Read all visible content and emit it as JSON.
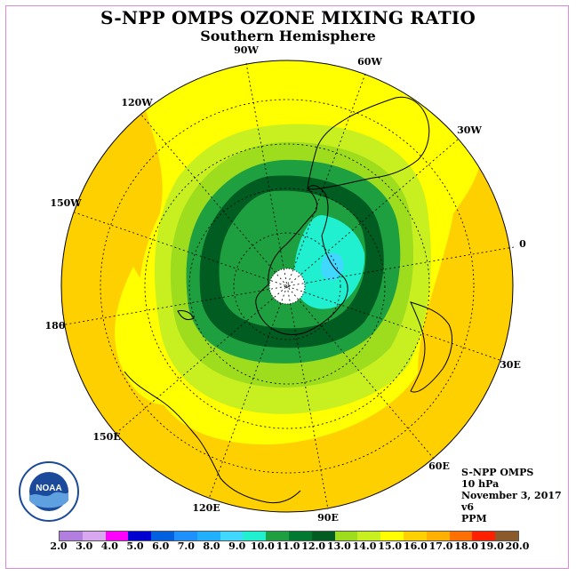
{
  "title": "S-NPP OMPS OZONE MIXING RATIO",
  "subtitle": "Southern Hemisphere",
  "info": {
    "instrument": "S-NPP OMPS",
    "level": "10 hPa",
    "date": "November 3, 2017",
    "version": "v6",
    "units": "PPM"
  },
  "logo_text": "NOAA",
  "longitude_labels": [
    "90W",
    "60W",
    "30W",
    "0",
    "30E",
    "60E",
    "90E",
    "120E",
    "150E",
    "180",
    "150W",
    "120W"
  ],
  "colorbar": {
    "ticks": [
      "2.0",
      "3.0",
      "4.0",
      "5.0",
      "6.0",
      "7.0",
      "8.0",
      "9.0",
      "10.0",
      "11.0",
      "12.0",
      "13.0",
      "14.0",
      "15.0",
      "16.0",
      "17.0",
      "18.0",
      "19.0",
      "20.0"
    ],
    "colors": [
      "#b27fe0",
      "#d9a6f0",
      "#ff00ff",
      "#0000d0",
      "#0060e0",
      "#1e90ff",
      "#20b0ff",
      "#40d8ff",
      "#20f0d0",
      "#1fa040",
      "#007a30",
      "#005c20",
      "#9edc1e",
      "#c8f020",
      "#ffff00",
      "#ffd000",
      "#ffb000",
      "#ff7000",
      "#ff2000",
      "#8b5a2b"
    ]
  }
}
